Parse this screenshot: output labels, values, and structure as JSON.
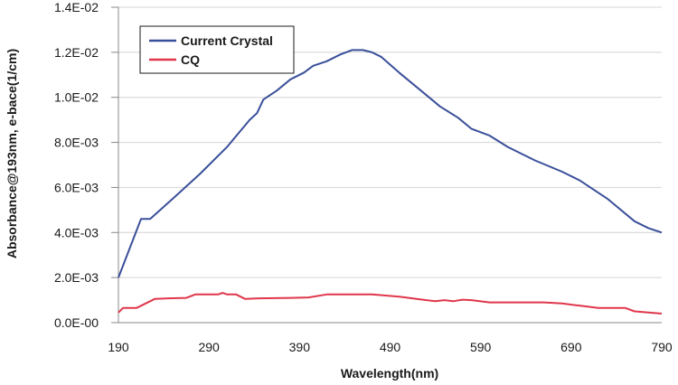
{
  "chart_data": {
    "type": "line",
    "xlabel": "Wavelength(nm)",
    "ylabel": "Absorbance@193nm, e-bace(1/cm)",
    "xlim": [
      190,
      790
    ],
    "ylim": [
      0,
      0.014
    ],
    "x_ticks": [
      "190",
      "290",
      "390",
      "490",
      "590",
      "690",
      "790"
    ],
    "y_ticks": [
      "0.0E-00",
      "2.0E-03",
      "4.0E-03",
      "6.0E-03",
      "8.0E-03",
      "1.0E-02",
      "1.2E-02",
      "1.4E-02"
    ],
    "grid": "horizontal",
    "legend_position": "top-left",
    "series": [
      {
        "name": "Current Crystal",
        "color": "#3a4f9a",
        "points": [
          [
            190,
            0.002
          ],
          [
            215,
            0.0046
          ],
          [
            225,
            0.0046
          ],
          [
            250,
            0.0055
          ],
          [
            280,
            0.0066
          ],
          [
            310,
            0.0078
          ],
          [
            335,
            0.009
          ],
          [
            343,
            0.0093
          ],
          [
            350,
            0.0099
          ],
          [
            365,
            0.0103
          ],
          [
            380,
            0.0108
          ],
          [
            395,
            0.0111
          ],
          [
            405,
            0.0114
          ],
          [
            420,
            0.0116
          ],
          [
            435,
            0.0119
          ],
          [
            448,
            0.0121
          ],
          [
            460,
            0.0121
          ],
          [
            470,
            0.012
          ],
          [
            480,
            0.0118
          ],
          [
            500,
            0.0111
          ],
          [
            530,
            0.0101
          ],
          [
            545,
            0.0096
          ],
          [
            565,
            0.0091
          ],
          [
            580,
            0.0086
          ],
          [
            600,
            0.0083
          ],
          [
            620,
            0.0078
          ],
          [
            650,
            0.0072
          ],
          [
            680,
            0.0067
          ],
          [
            700,
            0.0063
          ],
          [
            730,
            0.0055
          ],
          [
            760,
            0.0045
          ],
          [
            775,
            0.0042
          ],
          [
            790,
            0.004
          ]
        ]
      },
      {
        "name": "CQ",
        "color": "#e0364b",
        "points": [
          [
            190,
            0.00045
          ],
          [
            195,
            0.00065
          ],
          [
            210,
            0.00065
          ],
          [
            230,
            0.00105
          ],
          [
            245,
            0.00108
          ],
          [
            265,
            0.0011
          ],
          [
            275,
            0.00125
          ],
          [
            300,
            0.00125
          ],
          [
            305,
            0.00132
          ],
          [
            310,
            0.00125
          ],
          [
            320,
            0.00125
          ],
          [
            330,
            0.00105
          ],
          [
            345,
            0.00108
          ],
          [
            380,
            0.0011
          ],
          [
            400,
            0.00112
          ],
          [
            420,
            0.00125
          ],
          [
            450,
            0.00125
          ],
          [
            470,
            0.00125
          ],
          [
            500,
            0.00115
          ],
          [
            530,
            0.001
          ],
          [
            540,
            0.00095
          ],
          [
            550,
            0.001
          ],
          [
            560,
            0.00095
          ],
          [
            570,
            0.00102
          ],
          [
            580,
            0.001
          ],
          [
            600,
            0.0009
          ],
          [
            640,
            0.0009
          ],
          [
            660,
            0.0009
          ],
          [
            680,
            0.00085
          ],
          [
            700,
            0.00075
          ],
          [
            720,
            0.00065
          ],
          [
            750,
            0.00065
          ],
          [
            760,
            0.0005
          ],
          [
            790,
            0.0004
          ]
        ]
      }
    ]
  }
}
